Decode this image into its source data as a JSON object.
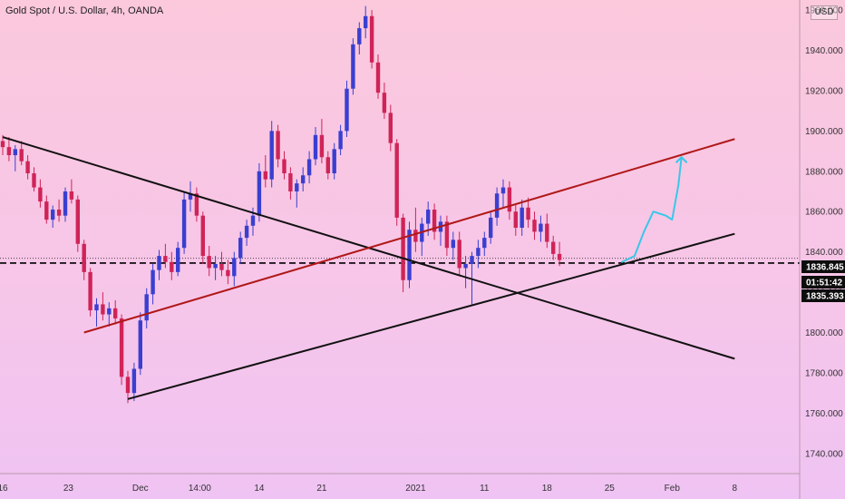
{
  "title": "Gold Spot / U.S. Dollar, 4h, OANDA",
  "currency": "USD",
  "chart_data": {
    "type": "candlestick",
    "ylim": [
      1730,
      1965
    ],
    "y_ticks": [
      "1740.000",
      "1760.000",
      "1780.000",
      "1800.000",
      "1820.000",
      "1840.000",
      "1860.000",
      "1880.000",
      "1900.000",
      "1920.000",
      "1940.000",
      "1960.000"
    ],
    "x_ticks": [
      "16",
      "23",
      "Dec",
      "14:00",
      "14",
      "21",
      "2021",
      "11",
      "18",
      "25",
      "Feb",
      "8"
    ],
    "price_tags": [
      {
        "label": "1836.845",
        "value": 1836.845,
        "style": "dark"
      },
      {
        "label": "01:51:42",
        "value": 1832.3,
        "style": "dark"
      },
      {
        "label": "1835.393",
        "value": 1829.5,
        "style": "dark"
      }
    ],
    "horizontal_levels": [
      1836.845,
      1835.393
    ],
    "trendlines": [
      {
        "name": "black-descending",
        "color": "#111111",
        "points": [
          [
            0,
            1897
          ],
          [
            117,
            1787
          ]
        ]
      },
      {
        "name": "black-ascending",
        "color": "#111111",
        "points": [
          [
            20,
            1767
          ],
          [
            117,
            1849
          ]
        ]
      },
      {
        "name": "red-upper-channel",
        "color": "#b01818",
        "points": [
          [
            13,
            1800
          ],
          [
            117,
            1896
          ]
        ]
      }
    ],
    "projection": {
      "color": "#38c8e8",
      "points": [
        [
          99,
          1835
        ],
        [
          101,
          1838
        ],
        [
          102.5,
          1850
        ],
        [
          104,
          1860
        ],
        [
          106,
          1858
        ],
        [
          107,
          1856
        ],
        [
          108,
          1873
        ],
        [
          108.5,
          1887
        ]
      ]
    },
    "candles": [
      [
        1895,
        1898,
        1888,
        1892
      ],
      [
        1892,
        1897,
        1885,
        1888
      ],
      [
        1888,
        1893,
        1880,
        1891
      ],
      [
        1891,
        1895,
        1883,
        1885
      ],
      [
        1885,
        1888,
        1876,
        1879
      ],
      [
        1879,
        1882,
        1870,
        1872
      ],
      [
        1872,
        1876,
        1862,
        1865
      ],
      [
        1865,
        1868,
        1854,
        1856
      ],
      [
        1856,
        1863,
        1852,
        1861
      ],
      [
        1861,
        1866,
        1855,
        1858
      ],
      [
        1858,
        1872,
        1855,
        1870
      ],
      [
        1870,
        1876,
        1864,
        1866
      ],
      [
        1866,
        1868,
        1840,
        1844
      ],
      [
        1844,
        1846,
        1826,
        1830
      ],
      [
        1830,
        1832,
        1808,
        1811
      ],
      [
        1811,
        1817,
        1803,
        1814
      ],
      [
        1814,
        1820,
        1806,
        1809
      ],
      [
        1809,
        1815,
        1803,
        1812
      ],
      [
        1812,
        1816,
        1804,
        1807
      ],
      [
        1807,
        1809,
        1774,
        1778
      ],
      [
        1778,
        1781,
        1765,
        1770
      ],
      [
        1770,
        1785,
        1766,
        1782
      ],
      [
        1782,
        1810,
        1779,
        1806
      ],
      [
        1806,
        1822,
        1802,
        1819
      ],
      [
        1819,
        1834,
        1814,
        1831
      ],
      [
        1831,
        1841,
        1826,
        1838
      ],
      [
        1838,
        1844,
        1832,
        1835
      ],
      [
        1835,
        1840,
        1826,
        1830
      ],
      [
        1830,
        1845,
        1828,
        1842
      ],
      [
        1842,
        1870,
        1839,
        1866
      ],
      [
        1866,
        1875,
        1860,
        1869
      ],
      [
        1869,
        1872,
        1855,
        1858
      ],
      [
        1858,
        1860,
        1834,
        1838
      ],
      [
        1838,
        1843,
        1828,
        1832
      ],
      [
        1832,
        1838,
        1826,
        1834
      ],
      [
        1834,
        1840,
        1828,
        1831
      ],
      [
        1831,
        1836,
        1824,
        1828
      ],
      [
        1828,
        1840,
        1823,
        1837
      ],
      [
        1837,
        1850,
        1834,
        1847
      ],
      [
        1847,
        1856,
        1843,
        1853
      ],
      [
        1853,
        1862,
        1848,
        1858
      ],
      [
        1858,
        1884,
        1855,
        1880
      ],
      [
        1880,
        1888,
        1872,
        1876
      ],
      [
        1876,
        1905,
        1872,
        1900
      ],
      [
        1900,
        1903,
        1882,
        1886
      ],
      [
        1886,
        1890,
        1876,
        1879
      ],
      [
        1879,
        1882,
        1866,
        1870
      ],
      [
        1870,
        1876,
        1862,
        1874
      ],
      [
        1874,
        1882,
        1870,
        1878
      ],
      [
        1878,
        1890,
        1874,
        1886
      ],
      [
        1886,
        1902,
        1883,
        1898
      ],
      [
        1898,
        1906,
        1884,
        1887
      ],
      [
        1887,
        1890,
        1876,
        1879
      ],
      [
        1879,
        1894,
        1876,
        1891
      ],
      [
        1891,
        1903,
        1888,
        1900
      ],
      [
        1900,
        1925,
        1897,
        1921
      ],
      [
        1921,
        1946,
        1918,
        1943
      ],
      [
        1943,
        1954,
        1938,
        1951
      ],
      [
        1951,
        1962,
        1946,
        1957
      ],
      [
        1957,
        1960,
        1931,
        1934
      ],
      [
        1934,
        1938,
        1916,
        1919
      ],
      [
        1919,
        1924,
        1906,
        1909
      ],
      [
        1909,
        1913,
        1890,
        1894
      ],
      [
        1894,
        1896,
        1853,
        1857
      ],
      [
        1857,
        1859,
        1820,
        1826
      ],
      [
        1826,
        1855,
        1822,
        1851
      ],
      [
        1851,
        1862,
        1840,
        1845
      ],
      [
        1845,
        1857,
        1838,
        1854
      ],
      [
        1854,
        1865,
        1848,
        1861
      ],
      [
        1861,
        1864,
        1846,
        1850
      ],
      [
        1850,
        1858,
        1843,
        1855
      ],
      [
        1855,
        1858,
        1838,
        1842
      ],
      [
        1842,
        1850,
        1836,
        1846
      ],
      [
        1846,
        1850,
        1828,
        1832
      ],
      [
        1832,
        1838,
        1822,
        1834
      ],
      [
        1834,
        1840,
        1814,
        1838
      ],
      [
        1838,
        1846,
        1832,
        1842
      ],
      [
        1842,
        1850,
        1838,
        1847
      ],
      [
        1847,
        1860,
        1844,
        1857
      ],
      [
        1857,
        1872,
        1853,
        1869
      ],
      [
        1869,
        1876,
        1862,
        1872
      ],
      [
        1872,
        1875,
        1856,
        1860
      ],
      [
        1860,
        1864,
        1848,
        1852
      ],
      [
        1852,
        1866,
        1848,
        1862
      ],
      [
        1862,
        1867,
        1852,
        1856
      ],
      [
        1856,
        1860,
        1846,
        1850
      ],
      [
        1850,
        1858,
        1845,
        1854
      ],
      [
        1854,
        1859,
        1842,
        1845
      ],
      [
        1845,
        1848,
        1836,
        1839
      ],
      [
        1839,
        1845,
        1833,
        1836
      ]
    ]
  }
}
